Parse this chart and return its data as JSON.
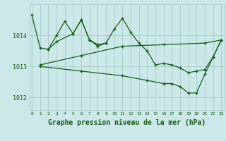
{
  "background_color": "#cce8e8",
  "grid_color": "#aacccc",
  "line_color": "#1a5c1a",
  "xlabel": "Graphe pression niveau de la mer (hPa)",
  "xlabel_fontsize": 7,
  "xtick_labels": [
    "0",
    "1",
    "2",
    "3",
    "4",
    "5",
    "6",
    "7",
    "8",
    "9",
    "10",
    "11",
    "12",
    "13",
    "14",
    "15",
    "16",
    "17",
    "18",
    "19",
    "20",
    "21",
    "22",
    "23"
  ],
  "ytick_values": [
    1012,
    1013,
    1014
  ],
  "ylim": [
    1011.6,
    1015.0
  ],
  "xlim": [
    -0.3,
    23.3
  ],
  "series": [
    {
      "x": [
        0,
        1,
        2,
        3,
        5,
        6,
        7,
        8,
        9,
        10,
        11,
        12,
        13,
        14,
        15,
        16,
        17,
        18,
        19,
        20,
        21,
        22,
        23
      ],
      "y": [
        1014.65,
        1013.6,
        1013.55,
        1013.8,
        1014.05,
        1014.5,
        1013.85,
        1013.7,
        1013.75,
        1014.2,
        1014.55,
        1014.1,
        1013.75,
        1013.5,
        1013.05,
        1013.1,
        1013.05,
        1012.95,
        1012.8,
        1012.85,
        1012.9,
        1013.3,
        1013.85
      ]
    },
    {
      "x": [
        2,
        3,
        4,
        5,
        6,
        7,
        8,
        9
      ],
      "y": [
        1013.55,
        1014.0,
        1014.45,
        1014.05,
        1014.5,
        1013.85,
        1013.65,
        1013.75
      ]
    },
    {
      "x": [
        1,
        6,
        11,
        16,
        21,
        23
      ],
      "y": [
        1013.05,
        1013.35,
        1013.65,
        1013.7,
        1013.75,
        1013.85
      ]
    },
    {
      "x": [
        1,
        6,
        11,
        14,
        16,
        17,
        18,
        19,
        20,
        21,
        22,
        23
      ],
      "y": [
        1013.0,
        1012.85,
        1012.7,
        1012.55,
        1012.45,
        1012.45,
        1012.35,
        1012.15,
        1012.15,
        1012.75,
        1013.3,
        1013.85
      ]
    }
  ]
}
